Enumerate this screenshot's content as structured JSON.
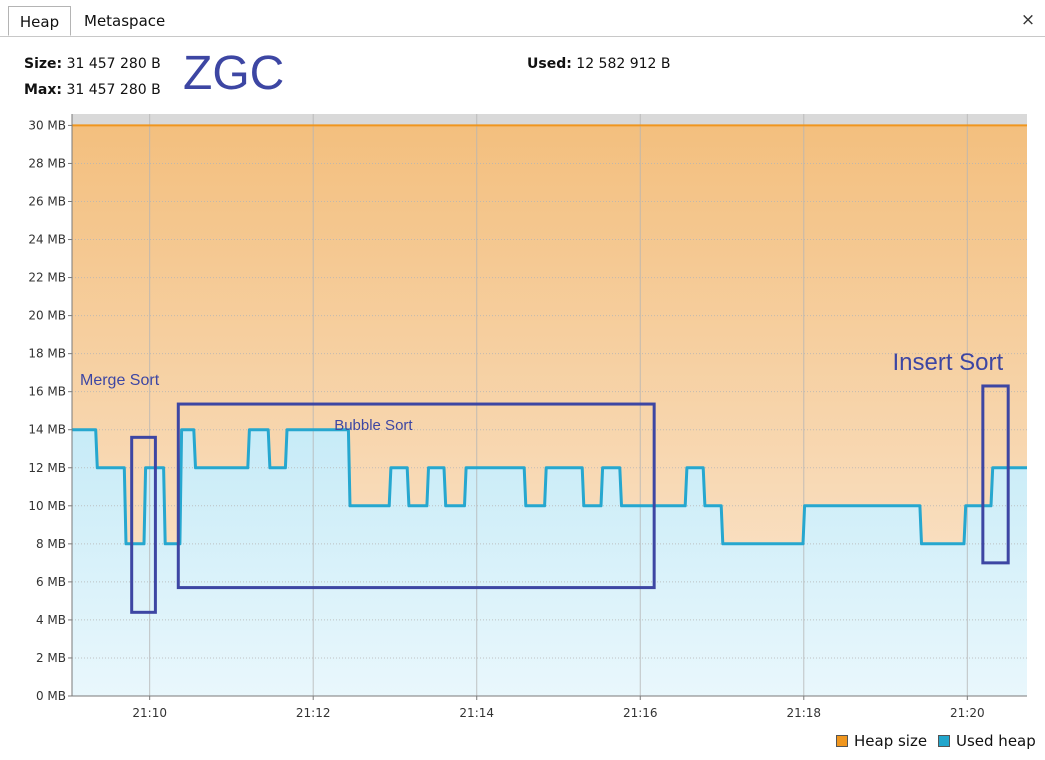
{
  "tabs": [
    {
      "label": "Heap",
      "active": true
    },
    {
      "label": "Metaspace",
      "active": false
    }
  ],
  "close_glyph": "×",
  "stats": {
    "size_label": "Size:",
    "size_value": "31 457 280 B",
    "max_label": "Max:",
    "max_value": "31 457 280 B",
    "used_label": "Used:",
    "used_value": "12 582 912 B"
  },
  "title_overlay": "ZGC",
  "legend": [
    {
      "label": "Heap size",
      "color": "#f0961e"
    },
    {
      "label": "Used heap",
      "color": "#22a6cc"
    }
  ],
  "chart_data": {
    "type": "area",
    "title": "ZGC",
    "xlabel": "",
    "ylabel": "",
    "x_unit": "minutes (clock time)",
    "xlim": [
      9.05,
      20.73
    ],
    "ylim": [
      0,
      30.6
    ],
    "y_ticks": [
      0,
      2,
      4,
      6,
      8,
      10,
      12,
      14,
      16,
      18,
      20,
      22,
      24,
      26,
      28,
      30
    ],
    "y_tick_labels": [
      "0 MB",
      "2 MB",
      "4 MB",
      "6 MB",
      "8 MB",
      "10 MB",
      "12 MB",
      "14 MB",
      "16 MB",
      "18 MB",
      "20 MB",
      "22 MB",
      "24 MB",
      "26 MB",
      "28 MB",
      "30 MB"
    ],
    "x_ticks": [
      10,
      12,
      14,
      16,
      18,
      20
    ],
    "x_tick_labels": [
      "21:10",
      "21:12",
      "21:14",
      "21:16",
      "21:18",
      "21:20"
    ],
    "grid": true,
    "colors": {
      "heap_line": "#f0961e",
      "heap_fill_top": "#f3bf7e",
      "heap_fill_bottom": "#fbe9d6",
      "used_line": "#26a7cf",
      "used_fill_top": "#c7ebf7",
      "used_fill_bottom": "#e9f7fc",
      "plot_bg": "#d9d9d9",
      "grid": "#b5b5b5",
      "annotation": "#3d46a3"
    },
    "series": [
      {
        "name": "Heap size",
        "x": [
          9.05,
          20.73
        ],
        "y": [
          30,
          30
        ]
      },
      {
        "name": "Used heap",
        "x": [
          9.05,
          9.34,
          9.36,
          9.69,
          9.71,
          9.93,
          9.95,
          10.17,
          10.19,
          10.37,
          10.39,
          10.54,
          10.56,
          11.2,
          11.22,
          11.45,
          11.47,
          11.66,
          11.68,
          12.43,
          12.45,
          12.93,
          12.95,
          13.15,
          13.17,
          13.39,
          13.41,
          13.6,
          13.62,
          13.85,
          13.87,
          14.58,
          14.6,
          14.83,
          14.85,
          15.29,
          15.31,
          15.52,
          15.54,
          15.75,
          15.77,
          16.55,
          16.57,
          16.77,
          16.79,
          16.99,
          17.01,
          17.99,
          18.01,
          19.42,
          19.44,
          19.96,
          19.98,
          20.29,
          20.31,
          20.73
        ],
        "y": [
          14,
          14,
          12,
          12,
          8,
          8,
          12,
          12,
          8,
          8,
          14,
          14,
          12,
          12,
          14,
          14,
          12,
          12,
          14,
          14,
          10,
          10,
          12,
          12,
          10,
          10,
          12,
          12,
          10,
          10,
          12,
          12,
          10,
          10,
          12,
          12,
          10,
          10,
          12,
          12,
          10,
          10,
          12,
          12,
          10,
          10,
          8,
          8,
          10,
          10,
          8,
          8,
          10,
          10,
          12,
          12
        ]
      }
    ],
    "annotations": [
      {
        "label": "Merge Sort",
        "x_range": [
          9.78,
          10.07
        ],
        "y_range": [
          4.4,
          13.6
        ]
      },
      {
        "label": "Bubble Sort",
        "x_range": [
          10.35,
          16.17
        ],
        "y_range": [
          5.7,
          15.35
        ]
      },
      {
        "label": "Insert Sort",
        "x_range": [
          20.19,
          20.5
        ],
        "y_range": [
          7.0,
          16.3
        ]
      }
    ]
  }
}
